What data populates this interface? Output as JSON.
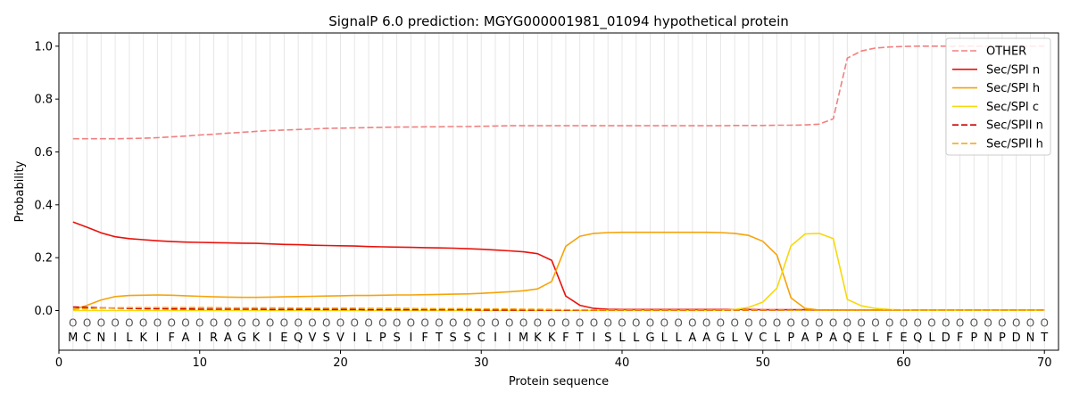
{
  "chart_data": {
    "type": "line",
    "title": "SignalP 6.0 prediction: MGYG000001981_01094 hypothetical protein",
    "xlabel": "Protein sequence",
    "ylabel": "Probability",
    "xlim": [
      0,
      71
    ],
    "ylim": [
      -0.15,
      1.05
    ],
    "x_ticks": [
      0,
      10,
      20,
      30,
      40,
      50,
      60,
      70
    ],
    "y_ticks": [
      0.0,
      0.2,
      0.4,
      0.6,
      0.8,
      1.0
    ],
    "y_tick_labels": [
      "0.0",
      "0.2",
      "0.4",
      "0.6",
      "0.8",
      "1.0"
    ],
    "grid": "vertical lines at each residue",
    "legend_position": "top-right",
    "sequence": [
      "M",
      "C",
      "N",
      "I",
      "L",
      "K",
      "I",
      "F",
      "A",
      "I",
      "R",
      "A",
      "G",
      "K",
      "I",
      "E",
      "Q",
      "V",
      "S",
      "V",
      "I",
      "L",
      "P",
      "S",
      "I",
      "F",
      "T",
      "S",
      "S",
      "C",
      "I",
      "I",
      "M",
      "K",
      "K",
      "F",
      "T",
      "I",
      "S",
      "L",
      "L",
      "G",
      "L",
      "L",
      "A",
      "A",
      "G",
      "L",
      "V",
      "C",
      "L",
      "P",
      "A",
      "P",
      "A",
      "Q",
      "E",
      "L",
      "F",
      "E",
      "Q",
      "L",
      "D",
      "F",
      "P",
      "N",
      "P",
      "D",
      "N",
      "T"
    ],
    "region_marker": "O",
    "region_marker_y": -0.045,
    "x": [
      1,
      2,
      3,
      4,
      5,
      6,
      7,
      8,
      9,
      10,
      11,
      12,
      13,
      14,
      15,
      16,
      17,
      18,
      19,
      20,
      21,
      22,
      23,
      24,
      25,
      26,
      27,
      28,
      29,
      30,
      31,
      32,
      33,
      34,
      35,
      36,
      37,
      38,
      39,
      40,
      41,
      42,
      43,
      44,
      45,
      46,
      47,
      48,
      49,
      50,
      51,
      52,
      53,
      54,
      55,
      56,
      57,
      58,
      59,
      60,
      61,
      62,
      63,
      64,
      65,
      66,
      67,
      68,
      69,
      70
    ],
    "series": [
      {
        "name": "OTHER",
        "color": "#f08080",
        "dash": "dashed",
        "values": [
          0.65,
          0.65,
          0.65,
          0.65,
          0.651,
          0.652,
          0.654,
          0.657,
          0.66,
          0.664,
          0.667,
          0.671,
          0.674,
          0.678,
          0.681,
          0.683,
          0.685,
          0.687,
          0.689,
          0.69,
          0.691,
          0.692,
          0.693,
          0.694,
          0.694,
          0.695,
          0.695,
          0.696,
          0.696,
          0.697,
          0.698,
          0.699,
          0.699,
          0.699,
          0.699,
          0.699,
          0.699,
          0.699,
          0.699,
          0.699,
          0.699,
          0.699,
          0.699,
          0.699,
          0.699,
          0.699,
          0.699,
          0.7,
          0.7,
          0.7,
          0.701,
          0.701,
          0.702,
          0.705,
          0.725,
          0.955,
          0.982,
          0.993,
          0.997,
          0.999,
          1.0,
          1.0,
          1.0,
          1.0,
          1.0,
          1.0,
          1.0,
          1.0,
          1.0,
          1.0
        ]
      },
      {
        "name": "Sec/SPI n",
        "color": "#e8120c",
        "dash": "solid",
        "values": [
          0.335,
          0.315,
          0.294,
          0.279,
          0.272,
          0.268,
          0.264,
          0.261,
          0.259,
          0.258,
          0.257,
          0.256,
          0.255,
          0.254,
          0.252,
          0.25,
          0.249,
          0.247,
          0.246,
          0.245,
          0.244,
          0.242,
          0.241,
          0.24,
          0.239,
          0.238,
          0.237,
          0.236,
          0.234,
          0.232,
          0.229,
          0.226,
          0.222,
          0.215,
          0.19,
          0.055,
          0.02,
          0.008,
          0.005,
          0.004,
          0.004,
          0.004,
          0.004,
          0.004,
          0.004,
          0.004,
          0.004,
          0.004,
          0.004,
          0.003,
          0.003,
          0.003,
          0.003,
          0.002,
          0.002,
          0.002,
          0.002,
          0.002,
          0.002,
          0.002,
          0.002,
          0.002,
          0.002,
          0.002,
          0.002,
          0.002,
          0.002,
          0.002,
          0.002,
          0.002
        ]
      },
      {
        "name": "Sec/SPI h",
        "color": "#f5a30a",
        "dash": "solid",
        "values": [
          0.003,
          0.02,
          0.04,
          0.053,
          0.057,
          0.058,
          0.059,
          0.058,
          0.056,
          0.054,
          0.052,
          0.051,
          0.05,
          0.05,
          0.051,
          0.052,
          0.053,
          0.054,
          0.055,
          0.056,
          0.057,
          0.057,
          0.058,
          0.059,
          0.059,
          0.06,
          0.061,
          0.062,
          0.063,
          0.065,
          0.068,
          0.071,
          0.075,
          0.082,
          0.11,
          0.243,
          0.281,
          0.292,
          0.295,
          0.296,
          0.296,
          0.296,
          0.296,
          0.296,
          0.296,
          0.296,
          0.295,
          0.292,
          0.284,
          0.262,
          0.21,
          0.048,
          0.008,
          0.002,
          0.002,
          0.002,
          0.002,
          0.002,
          0.002,
          0.002,
          0.002,
          0.002,
          0.002,
          0.002,
          0.002,
          0.002,
          0.002,
          0.002,
          0.002,
          0.002
        ]
      },
      {
        "name": "Sec/SPI c",
        "color": "#f5d90c",
        "dash": "solid",
        "values": [
          0.0,
          0.0,
          0.0,
          0.0,
          0.0,
          0.0,
          0.0,
          0.0,
          0.0,
          0.0,
          0.0,
          0.0,
          0.0,
          0.0,
          0.0,
          0.0,
          0.0,
          0.0,
          0.0,
          0.0,
          0.0,
          0.0,
          0.0,
          0.0,
          0.0,
          0.0,
          0.0,
          0.0,
          0.0,
          0.0,
          0.0,
          0.0,
          0.0,
          0.0,
          0.0,
          0.0,
          0.0,
          0.0,
          0.0,
          0.0,
          0.0,
          0.0,
          0.0,
          0.0,
          0.0,
          0.0,
          0.001,
          0.004,
          0.012,
          0.032,
          0.085,
          0.245,
          0.29,
          0.292,
          0.272,
          0.042,
          0.018,
          0.008,
          0.004,
          0.002,
          0.001,
          0.001,
          0.001,
          0.001,
          0.001,
          0.001,
          0.001,
          0.001,
          0.001,
          0.001
        ]
      },
      {
        "name": "Sec/SPII n",
        "color": "#cc0000",
        "dash": "dashed",
        "values": [
          0.013,
          0.012,
          0.01,
          0.009,
          0.008,
          0.007,
          0.007,
          0.006,
          0.006,
          0.005,
          0.005,
          0.005,
          0.005,
          0.005,
          0.004,
          0.004,
          0.004,
          0.004,
          0.004,
          0.004,
          0.004,
          0.003,
          0.003,
          0.003,
          0.003,
          0.003,
          0.003,
          0.003,
          0.003,
          0.002,
          0.002,
          0.002,
          0.002,
          0.002,
          0.002,
          0.001,
          0.001,
          0.001,
          0.001,
          0.001,
          0.001,
          0.001,
          0.001,
          0.001,
          0.001,
          0.001,
          0.001,
          0.001,
          0.001,
          0.001,
          0.001,
          0.001,
          0.001,
          0.001,
          0.001,
          0.001,
          0.001,
          0.001,
          0.001,
          0.001,
          0.001,
          0.001,
          0.001,
          0.001,
          0.001,
          0.001,
          0.001,
          0.001,
          0.001,
          0.001
        ]
      },
      {
        "name": "Sec/SPII h",
        "color": "#f5a30a",
        "dash": "dashed",
        "values": [
          0.006,
          0.007,
          0.009,
          0.01,
          0.011,
          0.011,
          0.011,
          0.011,
          0.011,
          0.011,
          0.011,
          0.01,
          0.01,
          0.01,
          0.01,
          0.01,
          0.009,
          0.009,
          0.009,
          0.009,
          0.009,
          0.008,
          0.008,
          0.008,
          0.008,
          0.007,
          0.007,
          0.007,
          0.007,
          0.006,
          0.006,
          0.006,
          0.005,
          0.005,
          0.004,
          0.003,
          0.002,
          0.002,
          0.002,
          0.002,
          0.002,
          0.002,
          0.002,
          0.002,
          0.002,
          0.002,
          0.002,
          0.002,
          0.002,
          0.002,
          0.002,
          0.001,
          0.001,
          0.001,
          0.001,
          0.001,
          0.001,
          0.001,
          0.001,
          0.001,
          0.001,
          0.001,
          0.001,
          0.001,
          0.001,
          0.001,
          0.001,
          0.001,
          0.001,
          0.001
        ]
      }
    ]
  }
}
